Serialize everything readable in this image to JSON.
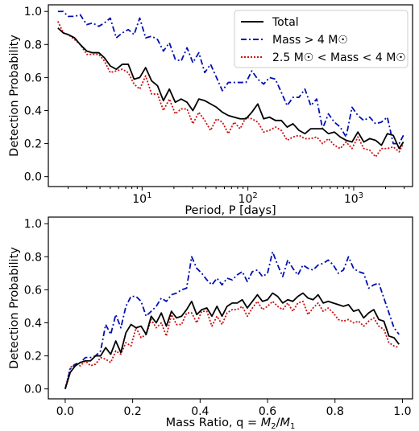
{
  "chart_data": [
    {
      "type": "line",
      "xlabel": "Period, P [days]",
      "ylabel": "Detection Probability",
      "xscale": "log",
      "xlim": [
        1.3,
        3600
      ],
      "ylim": [
        -0.06,
        1.04
      ],
      "yticks": [
        0.0,
        0.2,
        0.4,
        0.6,
        0.8,
        1.0
      ],
      "xtick_labels": [
        "10^1",
        "10^2",
        "10^3"
      ],
      "legend_position": "top-right",
      "legend": [
        "Total",
        "Mass > 4 M☉",
        "2.5 M☉ < Mass < 4 M☉"
      ],
      "series": [
        {
          "name": "Total",
          "color": "#000000",
          "dash": "solid",
          "x": [
            1.6,
            1.8,
            2.0,
            2.3,
            2.6,
            3.0,
            3.4,
            3.9,
            4.4,
            5.0,
            5.7,
            6.5,
            7.4,
            8.4,
            9.5,
            10.8,
            12.3,
            14.0,
            15.9,
            18.1,
            20.6,
            23.4,
            26.6,
            30.2,
            34.4,
            39.1,
            44.4,
            50.5,
            57.4,
            65.3,
            74.2,
            84.4,
            95.9,
            109,
            124,
            141,
            160,
            182,
            207,
            235,
            267,
            304,
            346,
            393,
            447,
            508,
            577,
            656,
            746,
            848,
            964,
            1096,
            1246,
            1416,
            1610,
            1830,
            2080,
            2365,
            2690,
            2950
          ],
          "y": [
            0.9,
            0.87,
            0.86,
            0.84,
            0.8,
            0.76,
            0.75,
            0.75,
            0.72,
            0.67,
            0.65,
            0.68,
            0.68,
            0.59,
            0.6,
            0.66,
            0.58,
            0.55,
            0.46,
            0.53,
            0.45,
            0.47,
            0.45,
            0.4,
            0.47,
            0.46,
            0.44,
            0.42,
            0.39,
            0.37,
            0.36,
            0.35,
            0.35,
            0.39,
            0.44,
            0.35,
            0.36,
            0.34,
            0.34,
            0.3,
            0.32,
            0.28,
            0.26,
            0.29,
            0.29,
            0.29,
            0.26,
            0.27,
            0.24,
            0.22,
            0.21,
            0.27,
            0.21,
            0.23,
            0.22,
            0.19,
            0.26,
            0.25,
            0.17,
            0.21
          ]
        },
        {
          "name": "Mass > 4 M☉",
          "color": "#0010b0",
          "dash": "dashdot",
          "x": [
            1.6,
            1.8,
            2.0,
            2.3,
            2.6,
            3.0,
            3.4,
            3.9,
            4.4,
            5.0,
            5.7,
            6.5,
            7.4,
            8.4,
            9.5,
            10.8,
            12.3,
            14.0,
            15.9,
            18.1,
            20.6,
            23.4,
            26.6,
            30.2,
            34.4,
            39.1,
            44.4,
            50.5,
            57.4,
            65.3,
            74.2,
            84.4,
            95.9,
            109,
            124,
            141,
            160,
            182,
            207,
            235,
            267,
            304,
            346,
            393,
            447,
            508,
            577,
            656,
            746,
            848,
            964,
            1096,
            1246,
            1416,
            1610,
            1830,
            2080,
            2365,
            2690,
            2950
          ],
          "y": [
            1.0,
            1.0,
            0.97,
            0.97,
            0.98,
            0.92,
            0.93,
            0.91,
            0.93,
            0.96,
            0.84,
            0.87,
            0.89,
            0.86,
            0.96,
            0.84,
            0.85,
            0.83,
            0.76,
            0.81,
            0.71,
            0.7,
            0.78,
            0.69,
            0.75,
            0.63,
            0.68,
            0.6,
            0.52,
            0.57,
            0.57,
            0.57,
            0.57,
            0.64,
            0.59,
            0.56,
            0.6,
            0.59,
            0.51,
            0.43,
            0.48,
            0.48,
            0.53,
            0.43,
            0.47,
            0.29,
            0.38,
            0.33,
            0.3,
            0.24,
            0.42,
            0.37,
            0.34,
            0.36,
            0.32,
            0.33,
            0.36,
            0.2,
            0.2,
            0.25
          ]
        },
        {
          "name": "2.5 M☉ < Mass < 4 M☉",
          "color": "#cc1010",
          "dash": "dotted",
          "x": [
            1.6,
            1.8,
            2.0,
            2.3,
            2.6,
            3.0,
            3.4,
            3.9,
            4.4,
            5.0,
            5.7,
            6.5,
            7.4,
            8.4,
            9.5,
            10.8,
            12.3,
            14.0,
            15.9,
            18.1,
            20.6,
            23.4,
            26.6,
            30.2,
            34.4,
            39.1,
            44.4,
            50.5,
            57.4,
            65.3,
            74.2,
            84.4,
            95.9,
            109,
            124,
            141,
            160,
            182,
            207,
            235,
            267,
            304,
            346,
            393,
            447,
            508,
            577,
            656,
            746,
            848,
            964,
            1096,
            1246,
            1416,
            1610,
            1830,
            2080,
            2365,
            2690,
            2950
          ],
          "y": [
            0.94,
            0.87,
            0.86,
            0.83,
            0.8,
            0.74,
            0.74,
            0.74,
            0.7,
            0.63,
            0.64,
            0.65,
            0.63,
            0.56,
            0.53,
            0.61,
            0.5,
            0.5,
            0.4,
            0.47,
            0.38,
            0.41,
            0.41,
            0.32,
            0.39,
            0.34,
            0.28,
            0.35,
            0.33,
            0.26,
            0.33,
            0.29,
            0.36,
            0.35,
            0.33,
            0.27,
            0.28,
            0.3,
            0.28,
            0.22,
            0.24,
            0.25,
            0.23,
            0.23,
            0.24,
            0.2,
            0.23,
            0.19,
            0.17,
            0.21,
            0.17,
            0.24,
            0.17,
            0.16,
            0.12,
            0.17,
            0.17,
            0.18,
            0.15,
            0.2
          ]
        }
      ]
    },
    {
      "type": "line",
      "xlabel": "Mass Ratio, q = M2/M1",
      "ylabel": "Detection Probability",
      "xlim": [
        -0.05,
        1.03
      ],
      "ylim": [
        -0.06,
        1.04
      ],
      "xticks": [
        0.0,
        0.2,
        0.4,
        0.6,
        0.8,
        1.0
      ],
      "yticks": [
        0.0,
        0.2,
        0.4,
        0.6,
        0.8,
        1.0
      ],
      "series": [
        {
          "name": "Total",
          "color": "#000000",
          "dash": "solid",
          "x": [
            0.0,
            0.015,
            0.03,
            0.045,
            0.06,
            0.075,
            0.09,
            0.105,
            0.12,
            0.135,
            0.15,
            0.165,
            0.18,
            0.195,
            0.21,
            0.225,
            0.24,
            0.255,
            0.27,
            0.285,
            0.3,
            0.315,
            0.33,
            0.345,
            0.36,
            0.375,
            0.39,
            0.405,
            0.42,
            0.435,
            0.45,
            0.465,
            0.48,
            0.495,
            0.51,
            0.525,
            0.54,
            0.555,
            0.57,
            0.585,
            0.6,
            0.615,
            0.63,
            0.645,
            0.66,
            0.675,
            0.69,
            0.705,
            0.72,
            0.735,
            0.75,
            0.765,
            0.78,
            0.795,
            0.81,
            0.825,
            0.84,
            0.855,
            0.87,
            0.885,
            0.9,
            0.915,
            0.93,
            0.945,
            0.96,
            0.975,
            0.99
          ],
          "y": [
            0.0,
            0.1,
            0.14,
            0.16,
            0.17,
            0.17,
            0.2,
            0.2,
            0.25,
            0.21,
            0.29,
            0.22,
            0.34,
            0.39,
            0.37,
            0.38,
            0.33,
            0.44,
            0.4,
            0.46,
            0.38,
            0.47,
            0.43,
            0.44,
            0.48,
            0.53,
            0.45,
            0.48,
            0.49,
            0.44,
            0.5,
            0.44,
            0.5,
            0.52,
            0.52,
            0.54,
            0.49,
            0.53,
            0.57,
            0.53,
            0.54,
            0.58,
            0.56,
            0.52,
            0.54,
            0.53,
            0.56,
            0.58,
            0.55,
            0.54,
            0.57,
            0.52,
            0.53,
            0.52,
            0.51,
            0.5,
            0.51,
            0.47,
            0.48,
            0.43,
            0.46,
            0.48,
            0.42,
            0.41,
            0.32,
            0.31,
            0.27
          ]
        },
        {
          "name": "Mass > 4 M☉",
          "color": "#0010b0",
          "dash": "dashdot",
          "x": [
            0.0,
            0.015,
            0.03,
            0.045,
            0.06,
            0.075,
            0.09,
            0.105,
            0.12,
            0.135,
            0.15,
            0.165,
            0.18,
            0.195,
            0.21,
            0.225,
            0.24,
            0.255,
            0.27,
            0.285,
            0.3,
            0.315,
            0.33,
            0.345,
            0.36,
            0.375,
            0.39,
            0.405,
            0.42,
            0.435,
            0.45,
            0.465,
            0.48,
            0.495,
            0.51,
            0.525,
            0.54,
            0.555,
            0.57,
            0.585,
            0.6,
            0.615,
            0.63,
            0.645,
            0.66,
            0.675,
            0.69,
            0.705,
            0.72,
            0.735,
            0.75,
            0.765,
            0.78,
            0.795,
            0.81,
            0.825,
            0.84,
            0.855,
            0.87,
            0.885,
            0.9,
            0.915,
            0.93,
            0.945,
            0.96,
            0.975,
            0.99
          ],
          "y": [
            0.0,
            0.12,
            0.15,
            0.16,
            0.19,
            0.19,
            0.2,
            0.23,
            0.39,
            0.33,
            0.45,
            0.37,
            0.5,
            0.56,
            0.56,
            0.53,
            0.44,
            0.47,
            0.5,
            0.55,
            0.53,
            0.57,
            0.58,
            0.6,
            0.61,
            0.8,
            0.73,
            0.7,
            0.66,
            0.63,
            0.67,
            0.63,
            0.67,
            0.66,
            0.69,
            0.71,
            0.65,
            0.71,
            0.72,
            0.68,
            0.7,
            0.83,
            0.75,
            0.68,
            0.78,
            0.73,
            0.69,
            0.75,
            0.73,
            0.72,
            0.75,
            0.76,
            0.78,
            0.75,
            0.7,
            0.72,
            0.8,
            0.73,
            0.71,
            0.7,
            0.61,
            0.63,
            0.64,
            0.55,
            0.46,
            0.37,
            0.33
          ]
        },
        {
          "name": "2.5 M☉ < Mass < 4 M☉",
          "color": "#cc1010",
          "dash": "dotted",
          "x": [
            0.0,
            0.015,
            0.03,
            0.045,
            0.06,
            0.075,
            0.09,
            0.105,
            0.12,
            0.135,
            0.15,
            0.165,
            0.18,
            0.195,
            0.21,
            0.225,
            0.24,
            0.255,
            0.27,
            0.285,
            0.3,
            0.315,
            0.33,
            0.345,
            0.36,
            0.375,
            0.39,
            0.405,
            0.42,
            0.435,
            0.45,
            0.465,
            0.48,
            0.495,
            0.51,
            0.525,
            0.54,
            0.555,
            0.57,
            0.585,
            0.6,
            0.615,
            0.63,
            0.645,
            0.66,
            0.675,
            0.69,
            0.705,
            0.72,
            0.735,
            0.75,
            0.765,
            0.78,
            0.795,
            0.81,
            0.825,
            0.84,
            0.855,
            0.87,
            0.885,
            0.9,
            0.915,
            0.93,
            0.945,
            0.96,
            0.975,
            0.99
          ],
          "y": [
            0.0,
            0.13,
            0.15,
            0.14,
            0.17,
            0.14,
            0.15,
            0.19,
            0.18,
            0.16,
            0.23,
            0.21,
            0.28,
            0.26,
            0.37,
            0.31,
            0.33,
            0.42,
            0.37,
            0.4,
            0.32,
            0.45,
            0.39,
            0.39,
            0.46,
            0.46,
            0.4,
            0.47,
            0.47,
            0.38,
            0.44,
            0.39,
            0.46,
            0.48,
            0.48,
            0.5,
            0.44,
            0.49,
            0.53,
            0.48,
            0.5,
            0.53,
            0.5,
            0.48,
            0.52,
            0.47,
            0.52,
            0.53,
            0.45,
            0.49,
            0.52,
            0.47,
            0.49,
            0.46,
            0.42,
            0.41,
            0.42,
            0.4,
            0.41,
            0.38,
            0.41,
            0.43,
            0.38,
            0.36,
            0.28,
            0.26,
            0.25
          ]
        }
      ]
    }
  ]
}
